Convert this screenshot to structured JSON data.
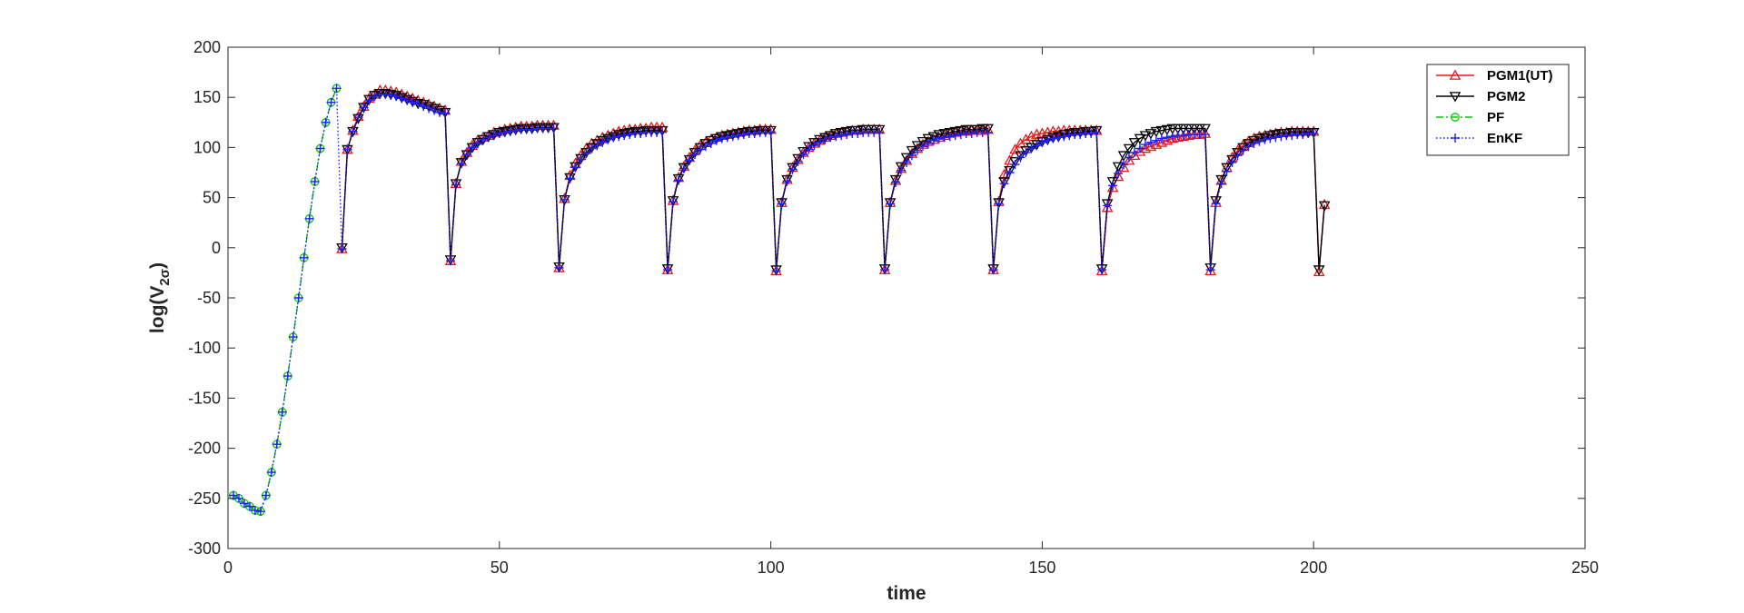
{
  "chart_data": {
    "type": "line",
    "title": "",
    "xlabel": "time",
    "ylabel_main": "log(V",
    "ylabel_sub": "2σ",
    "ylabel_close": ")",
    "xlim": [
      0,
      250
    ],
    "ylim": [
      -300,
      200
    ],
    "xticks": [
      0,
      50,
      100,
      150,
      200,
      250
    ],
    "yticks": [
      -300,
      -250,
      -200,
      -150,
      -100,
      -50,
      0,
      50,
      100,
      150,
      200
    ],
    "grid": false,
    "legend_position": "top-right",
    "series": [
      {
        "name": "PGM1(UT)",
        "color": "#e41a1c",
        "line_style": "solid",
        "marker": "triangle-up",
        "x": [
          21,
          22,
          23,
          24,
          25,
          26,
          27,
          28,
          29,
          30,
          31,
          32,
          33,
          34,
          35,
          36,
          37,
          38,
          39,
          40,
          41,
          42,
          43,
          44,
          45,
          46,
          47,
          48,
          49,
          50,
          51,
          52,
          53,
          54,
          55,
          56,
          57,
          58,
          59,
          60,
          61,
          62,
          63,
          64,
          65,
          66,
          67,
          68,
          69,
          70,
          71,
          72,
          73,
          74,
          75,
          76,
          77,
          78,
          79,
          80,
          81,
          82,
          83,
          84,
          85,
          86,
          87,
          88,
          89,
          90,
          91,
          92,
          93,
          94,
          95,
          96,
          97,
          98,
          99,
          100,
          101,
          102,
          103,
          104,
          105,
          106,
          107,
          108,
          109,
          110,
          111,
          112,
          113,
          114,
          115,
          116,
          117,
          118,
          119,
          120,
          121,
          122,
          123,
          124,
          125,
          126,
          127,
          128,
          129,
          130,
          131,
          132,
          133,
          134,
          135,
          136,
          137,
          138,
          139,
          140,
          141,
          142,
          143,
          144,
          145,
          146,
          147,
          148,
          149,
          150,
          151,
          152,
          153,
          154,
          155,
          156,
          157,
          158,
          159,
          160,
          161,
          162,
          163,
          164,
          165,
          166,
          167,
          168,
          169,
          170,
          171,
          172,
          173,
          174,
          175,
          176,
          177,
          178,
          179,
          180,
          181,
          182,
          183,
          184,
          185,
          186,
          187,
          188,
          189,
          190,
          191,
          192,
          193,
          194,
          195,
          196,
          197,
          198,
          199,
          200,
          201,
          202
        ],
        "y": [
          -1,
          98,
          117,
          131,
          141,
          149,
          153,
          157,
          157,
          156,
          155,
          153,
          151,
          149,
          147,
          145,
          143,
          141,
          139,
          137,
          -13,
          64,
          86,
          95,
          102,
          107,
          110,
          112,
          115,
          116,
          118,
          119,
          120,
          121,
          121,
          121,
          122,
          122,
          122,
          122,
          -20,
          49,
          72,
          84,
          92,
          99,
          104,
          107,
          110,
          112,
          114,
          116,
          117,
          118,
          118,
          119,
          119,
          120,
          120,
          120,
          -22,
          47,
          70,
          81,
          90,
          97,
          102,
          105,
          108,
          110,
          112,
          113,
          114,
          115,
          116,
          117,
          117,
          118,
          118,
          118,
          -23,
          45,
          68,
          80,
          88,
          95,
          100,
          104,
          107,
          110,
          112,
          114,
          115,
          116,
          117,
          117,
          118,
          118,
          118,
          118,
          -22,
          45,
          67,
          79,
          87,
          94,
          99,
          103,
          106,
          108,
          110,
          112,
          114,
          115,
          116,
          116,
          117,
          117,
          117,
          118,
          -22,
          46,
          73,
          87,
          98,
          104,
          108,
          111,
          113,
          114,
          115,
          116,
          116,
          117,
          117,
          117,
          117,
          117,
          117,
          117,
          -23,
          40,
          60,
          71,
          80,
          87,
          92,
          96,
          99,
          101,
          103,
          105,
          107,
          109,
          110,
          111,
          112,
          113,
          113,
          114,
          -23,
          45,
          67,
          80,
          90,
          97,
          102,
          106,
          109,
          111,
          112,
          113,
          114,
          115,
          115,
          116,
          116,
          116,
          116,
          116,
          -24,
          43
        ]
      },
      {
        "name": "PGM2",
        "color": "#000000",
        "line_style": "solid",
        "marker": "triangle-down",
        "x": [
          21,
          22,
          23,
          24,
          25,
          26,
          27,
          28,
          29,
          30,
          31,
          32,
          33,
          34,
          35,
          36,
          37,
          38,
          39,
          40,
          41,
          42,
          43,
          44,
          45,
          46,
          47,
          48,
          49,
          50,
          51,
          52,
          53,
          54,
          55,
          56,
          57,
          58,
          59,
          60,
          61,
          62,
          63,
          64,
          65,
          66,
          67,
          68,
          69,
          70,
          71,
          72,
          73,
          74,
          75,
          76,
          77,
          78,
          79,
          80,
          81,
          82,
          83,
          84,
          85,
          86,
          87,
          88,
          89,
          90,
          91,
          92,
          93,
          94,
          95,
          96,
          97,
          98,
          99,
          100,
          101,
          102,
          103,
          104,
          105,
          106,
          107,
          108,
          109,
          110,
          111,
          112,
          113,
          114,
          115,
          116,
          117,
          118,
          119,
          120,
          121,
          122,
          123,
          124,
          125,
          126,
          127,
          128,
          129,
          130,
          131,
          132,
          133,
          134,
          135,
          136,
          137,
          138,
          139,
          140,
          141,
          142,
          143,
          144,
          145,
          146,
          147,
          148,
          149,
          150,
          151,
          152,
          153,
          154,
          155,
          156,
          157,
          158,
          159,
          160,
          161,
          162,
          163,
          164,
          165,
          166,
          167,
          168,
          169,
          170,
          171,
          172,
          173,
          174,
          175,
          176,
          177,
          178,
          179,
          180,
          181,
          182,
          183,
          184,
          185,
          186,
          187,
          188,
          189,
          190,
          191,
          192,
          193,
          194,
          195,
          196,
          197,
          198,
          199,
          200,
          201,
          202
        ],
        "y": [
          0,
          98,
          116,
          129,
          140,
          148,
          152,
          154,
          154,
          153,
          152,
          150,
          148,
          146,
          144,
          143,
          141,
          139,
          137,
          135,
          -12,
          64,
          85,
          93,
          100,
          105,
          108,
          111,
          113,
          115,
          116,
          117,
          118,
          119,
          119,
          119,
          120,
          120,
          120,
          120,
          -19,
          48,
          70,
          81,
          89,
          95,
          100,
          104,
          107,
          109,
          111,
          113,
          114,
          115,
          116,
          116,
          117,
          117,
          117,
          117,
          -21,
          47,
          69,
          80,
          88,
          95,
          100,
          104,
          107,
          109,
          111,
          112,
          113,
          114,
          115,
          116,
          116,
          117,
          117,
          117,
          -22,
          45,
          68,
          80,
          89,
          96,
          101,
          105,
          108,
          110,
          112,
          114,
          115,
          116,
          117,
          117,
          118,
          118,
          118,
          118,
          -21,
          45,
          68,
          81,
          90,
          97,
          102,
          106,
          109,
          111,
          113,
          114,
          115,
          116,
          117,
          118,
          118,
          118,
          119,
          119,
          -21,
          45,
          66,
          77,
          86,
          92,
          97,
          100,
          103,
          106,
          108,
          110,
          111,
          113,
          114,
          115,
          115,
          116,
          116,
          117,
          -21,
          44,
          66,
          81,
          92,
          99,
          105,
          109,
          112,
          114,
          116,
          117,
          118,
          119,
          119,
          119,
          119,
          119,
          119,
          119,
          -20,
          47,
          68,
          80,
          88,
          95,
          100,
          104,
          107,
          109,
          110,
          112,
          113,
          114,
          114,
          115,
          115,
          115,
          115,
          115,
          -22,
          42
        ]
      },
      {
        "name": "PF",
        "color": "#00cc00",
        "line_style": "dashdot",
        "marker": "circle",
        "x": [
          1,
          2,
          3,
          4,
          5,
          6,
          7,
          8,
          9,
          10,
          11,
          12,
          13,
          14,
          15,
          16,
          17,
          18,
          19,
          20
        ],
        "y": [
          -247,
          -250,
          -255,
          -258,
          -262,
          -263,
          -247,
          -224,
          -196,
          -164,
          -128,
          -89,
          -50,
          -10,
          29,
          66,
          99,
          125,
          145,
          159
        ]
      },
      {
        "name": "EnKF",
        "color": "#1f1fff",
        "line_style": "dotted",
        "marker": "plus",
        "x": [
          1,
          2,
          3,
          4,
          5,
          6,
          7,
          8,
          9,
          10,
          11,
          12,
          13,
          14,
          15,
          16,
          17,
          18,
          19,
          20,
          21,
          22,
          23,
          24,
          25,
          26,
          27,
          28,
          29,
          30,
          31,
          32,
          33,
          34,
          35,
          36,
          37,
          38,
          39,
          40,
          41,
          42,
          43,
          44,
          45,
          46,
          47,
          48,
          49,
          50,
          51,
          52,
          53,
          54,
          55,
          56,
          57,
          58,
          59,
          60,
          61,
          62,
          63,
          64,
          65,
          66,
          67,
          68,
          69,
          70,
          71,
          72,
          73,
          74,
          75,
          76,
          77,
          78,
          79,
          80,
          81,
          82,
          83,
          84,
          85,
          86,
          87,
          88,
          89,
          90,
          91,
          92,
          93,
          94,
          95,
          96,
          97,
          98,
          99,
          100,
          101,
          102,
          103,
          104,
          105,
          106,
          107,
          108,
          109,
          110,
          111,
          112,
          113,
          114,
          115,
          116,
          117,
          118,
          119,
          120,
          121,
          122,
          123,
          124,
          125,
          126,
          127,
          128,
          129,
          130,
          131,
          132,
          133,
          134,
          135,
          136,
          137,
          138,
          139,
          140,
          141,
          142,
          143,
          144,
          145,
          146,
          147,
          148,
          149,
          150,
          151,
          152,
          153,
          154,
          155,
          156,
          157,
          158,
          159,
          160,
          161,
          162,
          163,
          164,
          165,
          166,
          167,
          168,
          169,
          170,
          171,
          172,
          173,
          174,
          175,
          176,
          177,
          178,
          179,
          180,
          181,
          182,
          183,
          184,
          185,
          186,
          187,
          188,
          189,
          190,
          191,
          192,
          193,
          194,
          195,
          196,
          197,
          198,
          199,
          200
        ],
        "y": [
          -247,
          -250,
          -255,
          -258,
          -262,
          -263,
          -247,
          -224,
          -196,
          -164,
          -128,
          -89,
          -50,
          -10,
          29,
          66,
          99,
          125,
          145,
          159,
          -1,
          98,
          116,
          130,
          140,
          147,
          151,
          153,
          153,
          152,
          151,
          149,
          147,
          145,
          143,
          141,
          139,
          137,
          135,
          134,
          -13,
          63,
          84,
          93,
          100,
          104,
          108,
          110,
          112,
          114,
          115,
          116,
          117,
          118,
          118,
          118,
          119,
          119,
          119,
          119,
          -20,
          48,
          69,
          80,
          88,
          94,
          99,
          102,
          105,
          108,
          110,
          111,
          112,
          113,
          114,
          114,
          115,
          115,
          115,
          115,
          -22,
          46,
          67,
          79,
          87,
          93,
          98,
          101,
          104,
          107,
          109,
          110,
          111,
          112,
          113,
          114,
          114,
          115,
          115,
          115,
          -23,
          44,
          66,
          78,
          86,
          93,
          98,
          102,
          105,
          108,
          110,
          111,
          112,
          113,
          114,
          114,
          115,
          115,
          115,
          115,
          -22,
          44,
          65,
          77,
          85,
          92,
          97,
          101,
          104,
          107,
          109,
          110,
          111,
          112,
          113,
          114,
          114,
          115,
          115,
          115,
          -22,
          44,
          64,
          75,
          83,
          90,
          95,
          99,
          102,
          105,
          107,
          109,
          110,
          111,
          112,
          113,
          113,
          114,
          114,
          115,
          -22,
          42,
          62,
          74,
          83,
          90,
          95,
          99,
          103,
          105,
          107,
          109,
          110,
          111,
          112,
          112,
          113,
          113,
          113,
          113,
          -22,
          44,
          64,
          76,
          85,
          92,
          97,
          101,
          104,
          106,
          108,
          109,
          110,
          111,
          112,
          112,
          113,
          113,
          114,
          114
        ]
      }
    ]
  }
}
